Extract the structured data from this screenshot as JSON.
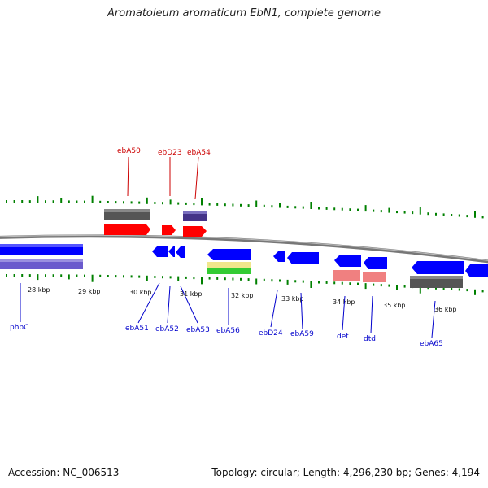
{
  "title": "Aromatoleum aromaticum EbN1, complete genome",
  "footer": {
    "accession": "Accession: NC_006513",
    "stats": "Topology: circular; Length: 4,296,230 bp; Genes: 4,194"
  },
  "colors": {
    "cds_forward": "#0000ff",
    "cds_label_blue": "#0000cc",
    "rna_red": "#ff0000",
    "label_red": "#cc0000",
    "gc_tick_green": "#008000",
    "backbone": "#888888",
    "feature_gray": "#555555",
    "feature_purple": "#5a4fa0",
    "feature_salmon": "#f08080",
    "feature_yellow": "#f0e68c",
    "feature_green": "#33cc33"
  },
  "kbp_ticks": [
    "28 kbp",
    "29 kbp",
    "30 kbp",
    "31 kbp",
    "32 kbp",
    "33 kbp",
    "34 kbp",
    "35 kbp",
    "36 kbp"
  ],
  "genes_above": [
    {
      "name": "ebA50"
    },
    {
      "name": "ebD23"
    },
    {
      "name": "ebA54"
    }
  ],
  "genes_below": [
    {
      "name": "phbC"
    },
    {
      "name": "ebA51"
    },
    {
      "name": "ebA52"
    },
    {
      "name": "ebA53"
    },
    {
      "name": "ebA56"
    },
    {
      "name": "ebD24"
    },
    {
      "name": "ebA59"
    },
    {
      "name": "def"
    },
    {
      "name": "dtd"
    },
    {
      "name": "ebA65"
    }
  ]
}
